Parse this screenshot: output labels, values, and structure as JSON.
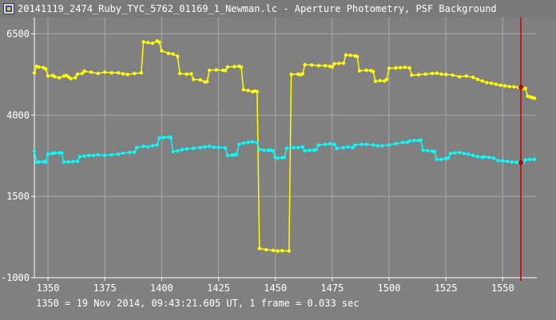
{
  "window": {
    "title": "20141119_2474_Ruby_TYC_5762_01169_1_Newman.lc - Aperture Photometry, PSF Background",
    "icon": "photometry-app-icon"
  },
  "footer": {
    "info": "1350 = 19 Nov 2014, 09:43:21.605 UT, 1 frame = 0.033 sec"
  },
  "colors": {
    "background": "#808080",
    "grid": "#a8a8a8",
    "axis": "#ffffff",
    "series1": "#ffff00",
    "series2": "#00ffff",
    "cursor": "#c00000",
    "marker": "#c00000"
  },
  "chart_data": {
    "type": "line",
    "title": "",
    "xlabel": "",
    "ylabel": "",
    "xlim": [
      1344,
      1565
    ],
    "ylim": [
      -1000,
      7000
    ],
    "x_ticks": [
      1350,
      1375,
      1400,
      1425,
      1450,
      1475,
      1500,
      1525,
      1550
    ],
    "y_ticks": [
      -1000,
      1500,
      4000,
      6500
    ],
    "grid": true,
    "cursor_x": 1558,
    "series": [
      {
        "color": "#ffff00",
        "points": [
          [
            1344,
            5300
          ],
          [
            1345,
            5500
          ],
          [
            1346,
            5480
          ],
          [
            1348,
            5460
          ],
          [
            1349,
            5420
          ],
          [
            1350,
            5200
          ],
          [
            1352,
            5220
          ],
          [
            1353,
            5180
          ],
          [
            1355,
            5150
          ],
          [
            1357,
            5200
          ],
          [
            1358,
            5220
          ],
          [
            1359,
            5180
          ],
          [
            1360,
            5120
          ],
          [
            1362,
            5150
          ],
          [
            1363,
            5260
          ],
          [
            1365,
            5280
          ],
          [
            1366,
            5350
          ],
          [
            1369,
            5320
          ],
          [
            1372,
            5280
          ],
          [
            1375,
            5320
          ],
          [
            1378,
            5300
          ],
          [
            1381,
            5300
          ],
          [
            1383,
            5270
          ],
          [
            1385,
            5250
          ],
          [
            1388,
            5280
          ],
          [
            1391,
            5300
          ],
          [
            1392,
            6250
          ],
          [
            1394,
            6230
          ],
          [
            1396,
            6210
          ],
          [
            1398,
            6280
          ],
          [
            1399,
            6240
          ],
          [
            1400,
            5980
          ],
          [
            1403,
            5900
          ],
          [
            1405,
            5880
          ],
          [
            1407,
            5810
          ],
          [
            1408,
            5280
          ],
          [
            1411,
            5260
          ],
          [
            1413,
            5270
          ],
          [
            1414,
            5100
          ],
          [
            1417,
            5080
          ],
          [
            1419,
            5020
          ],
          [
            1420,
            5030
          ],
          [
            1421,
            5380
          ],
          [
            1424,
            5390
          ],
          [
            1427,
            5380
          ],
          [
            1428,
            5370
          ],
          [
            1429,
            5480
          ],
          [
            1432,
            5490
          ],
          [
            1434,
            5500
          ],
          [
            1435,
            5480
          ],
          [
            1436,
            4780
          ],
          [
            1438,
            4760
          ],
          [
            1440,
            4720
          ],
          [
            1441,
            4740
          ],
          [
            1442,
            4720
          ],
          [
            1443,
            -100
          ],
          [
            1446,
            -140
          ],
          [
            1449,
            -160
          ],
          [
            1451,
            -180
          ],
          [
            1453,
            -170
          ],
          [
            1456,
            -180
          ],
          [
            1457,
            5250
          ],
          [
            1460,
            5260
          ],
          [
            1461,
            5240
          ],
          [
            1462,
            5270
          ],
          [
            1463,
            5550
          ],
          [
            1466,
            5540
          ],
          [
            1469,
            5520
          ],
          [
            1472,
            5520
          ],
          [
            1474,
            5500
          ],
          [
            1475,
            5480
          ],
          [
            1476,
            5580
          ],
          [
            1478,
            5590
          ],
          [
            1480,
            5600
          ],
          [
            1481,
            5850
          ],
          [
            1483,
            5840
          ],
          [
            1485,
            5820
          ],
          [
            1486,
            5800
          ],
          [
            1487,
            5360
          ],
          [
            1490,
            5380
          ],
          [
            1492,
            5370
          ],
          [
            1493,
            5340
          ],
          [
            1494,
            5040
          ],
          [
            1496,
            5060
          ],
          [
            1498,
            5050
          ],
          [
            1499,
            5100
          ],
          [
            1500,
            5440
          ],
          [
            1503,
            5450
          ],
          [
            1505,
            5460
          ],
          [
            1507,
            5470
          ],
          [
            1509,
            5450
          ],
          [
            1510,
            5230
          ],
          [
            1513,
            5240
          ],
          [
            1516,
            5260
          ],
          [
            1519,
            5280
          ],
          [
            1521,
            5290
          ],
          [
            1523,
            5260
          ],
          [
            1525,
            5250
          ],
          [
            1528,
            5230
          ],
          [
            1531,
            5180
          ],
          [
            1534,
            5200
          ],
          [
            1537,
            5160
          ],
          [
            1539,
            5100
          ],
          [
            1541,
            5050
          ],
          [
            1543,
            5000
          ],
          [
            1545,
            4980
          ],
          [
            1547,
            4950
          ],
          [
            1549,
            4920
          ],
          [
            1551,
            4900
          ],
          [
            1553,
            4880
          ],
          [
            1555,
            4870
          ],
          [
            1557,
            4850
          ],
          [
            1558,
            4860
          ],
          [
            1559,
            4820
          ],
          [
            1560,
            4820
          ],
          [
            1561,
            4580
          ],
          [
            1562,
            4560
          ],
          [
            1563,
            4540
          ],
          [
            1564,
            4520
          ]
        ]
      },
      {
        "color": "#00ffff",
        "points": [
          [
            1344,
            2900
          ],
          [
            1345,
            2550
          ],
          [
            1346,
            2560
          ],
          [
            1348,
            2570
          ],
          [
            1349,
            2560
          ],
          [
            1350,
            2800
          ],
          [
            1352,
            2820
          ],
          [
            1353,
            2840
          ],
          [
            1355,
            2840
          ],
          [
            1356,
            2840
          ],
          [
            1357,
            2560
          ],
          [
            1359,
            2560
          ],
          [
            1361,
            2570
          ],
          [
            1363,
            2580
          ],
          [
            1364,
            2720
          ],
          [
            1366,
            2740
          ],
          [
            1368,
            2760
          ],
          [
            1370,
            2760
          ],
          [
            1372,
            2780
          ],
          [
            1375,
            2760
          ],
          [
            1378,
            2780
          ],
          [
            1381,
            2800
          ],
          [
            1383,
            2830
          ],
          [
            1386,
            2850
          ],
          [
            1388,
            2860
          ],
          [
            1389,
            3000
          ],
          [
            1392,
            3040
          ],
          [
            1394,
            3020
          ],
          [
            1396,
            3060
          ],
          [
            1398,
            3080
          ],
          [
            1399,
            3300
          ],
          [
            1401,
            3310
          ],
          [
            1403,
            3330
          ],
          [
            1404,
            3310
          ],
          [
            1405,
            2880
          ],
          [
            1407,
            2900
          ],
          [
            1409,
            2940
          ],
          [
            1411,
            2960
          ],
          [
            1414,
            2980
          ],
          [
            1417,
            3000
          ],
          [
            1419,
            3020
          ],
          [
            1421,
            3040
          ],
          [
            1423,
            3010
          ],
          [
            1425,
            3010
          ],
          [
            1428,
            2990
          ],
          [
            1429,
            2760
          ],
          [
            1431,
            2770
          ],
          [
            1432,
            2780
          ],
          [
            1433,
            2790
          ],
          [
            1434,
            3100
          ],
          [
            1436,
            3140
          ],
          [
            1438,
            3160
          ],
          [
            1440,
            3180
          ],
          [
            1442,
            3150
          ],
          [
            1443,
            2940
          ],
          [
            1445,
            2920
          ],
          [
            1447,
            2920
          ],
          [
            1448,
            2920
          ],
          [
            1449,
            2900
          ],
          [
            1450,
            2700
          ],
          [
            1451,
            2680
          ],
          [
            1453,
            2690
          ],
          [
            1454,
            2700
          ],
          [
            1455,
            2980
          ],
          [
            1458,
            3000
          ],
          [
            1460,
            3000
          ],
          [
            1462,
            3020
          ],
          [
            1463,
            2900
          ],
          [
            1465,
            2920
          ],
          [
            1467,
            2920
          ],
          [
            1468,
            2940
          ],
          [
            1469,
            3080
          ],
          [
            1472,
            3100
          ],
          [
            1474,
            3120
          ],
          [
            1476,
            3100
          ],
          [
            1477,
            2980
          ],
          [
            1480,
            3000
          ],
          [
            1482,
            3020
          ],
          [
            1484,
            3000
          ],
          [
            1485,
            3080
          ],
          [
            1488,
            3100
          ],
          [
            1490,
            3100
          ],
          [
            1493,
            3080
          ],
          [
            1495,
            3060
          ],
          [
            1497,
            3060
          ],
          [
            1500,
            3080
          ],
          [
            1503,
            3120
          ],
          [
            1506,
            3160
          ],
          [
            1508,
            3160
          ],
          [
            1509,
            3200
          ],
          [
            1511,
            3220
          ],
          [
            1513,
            3220
          ],
          [
            1514,
            3230
          ],
          [
            1515,
            2920
          ],
          [
            1517,
            2910
          ],
          [
            1519,
            2890
          ],
          [
            1520,
            2880
          ],
          [
            1521,
            2640
          ],
          [
            1523,
            2640
          ],
          [
            1525,
            2660
          ],
          [
            1526,
            2680
          ],
          [
            1527,
            2820
          ],
          [
            1529,
            2840
          ],
          [
            1531,
            2850
          ],
          [
            1533,
            2820
          ],
          [
            1535,
            2800
          ],
          [
            1537,
            2760
          ],
          [
            1539,
            2720
          ],
          [
            1541,
            2700
          ],
          [
            1542,
            2720
          ],
          [
            1544,
            2700
          ],
          [
            1546,
            2680
          ],
          [
            1548,
            2600
          ],
          [
            1550,
            2590
          ],
          [
            1552,
            2580
          ],
          [
            1554,
            2560
          ],
          [
            1556,
            2550
          ],
          [
            1557,
            2540
          ],
          [
            1559,
            2540
          ],
          [
            1560,
            2620
          ],
          [
            1562,
            2640
          ],
          [
            1564,
            2640
          ]
        ]
      }
    ]
  }
}
